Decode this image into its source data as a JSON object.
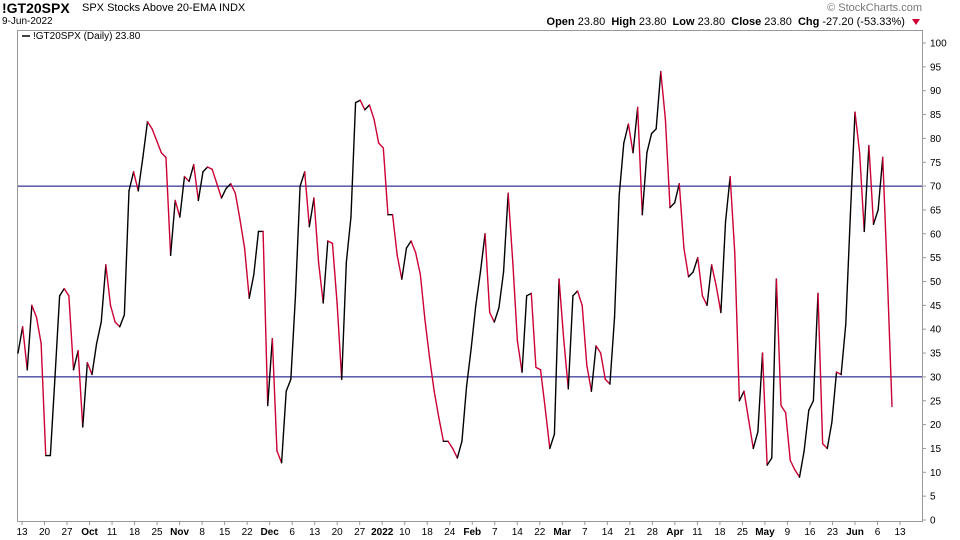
{
  "header": {
    "symbol": "!GT20SPX",
    "description": "SPX Stocks Above 20-EMA  INDX",
    "date": "9-Jun-2022",
    "watermark": "© StockCharts.com",
    "open_label": "Open",
    "open": "23.80",
    "high_label": "High",
    "high": "23.80",
    "low_label": "Low",
    "low": "23.80",
    "close_label": "Close",
    "close": "23.80",
    "chg_label": "Chg",
    "chg": "-27.20 (-53.33%)"
  },
  "legend": {
    "text": "!GT20SPX (Daily) 23.80"
  },
  "colors": {
    "up": "#000000",
    "down": "#cc0033",
    "refline": "#000080",
    "grid": "#cccccc"
  },
  "chart_data": {
    "type": "line",
    "title": "SPX Stocks Above 20-EMA",
    "series": [
      {
        "name": "!GT20SPX (Daily) 23.80",
        "values": [
          35,
          40.5,
          31.5,
          45,
          42.5,
          37,
          13.5,
          13.5,
          30,
          47,
          48.5,
          47,
          31.5,
          35.5,
          19.5,
          33,
          30.5,
          37,
          41.5,
          53.5,
          45,
          41.5,
          40.5,
          43,
          69,
          73,
          69,
          76,
          83.5,
          82,
          79.5,
          77,
          76,
          55.5,
          67,
          63.5,
          72,
          71,
          74.5,
          67,
          73,
          74,
          73.5,
          70.5,
          67.5,
          69.5,
          70.5,
          68.5,
          63,
          57,
          46.5,
          51.5,
          60.5,
          60.5,
          24,
          38,
          14.5,
          12,
          27,
          29.5,
          47,
          70,
          73,
          61.5,
          67.5,
          54,
          45.5,
          58.5,
          58,
          45.5,
          29.5,
          54,
          63.5,
          87.5,
          88,
          86,
          87,
          84,
          79,
          78,
          64,
          64,
          55.5,
          50.5,
          57,
          58.5,
          56,
          51.5,
          42,
          34,
          27,
          21.5,
          16.5,
          16.5,
          15,
          13,
          16.5,
          28,
          36,
          45,
          52,
          60,
          43.5,
          41.5,
          44.5,
          52,
          68.5,
          54,
          37.5,
          31,
          47,
          47.5,
          32,
          31.5,
          23.5,
          15,
          18,
          50.5,
          38,
          27.5,
          47,
          48,
          45,
          32.5,
          27,
          36.5,
          35,
          29.5,
          28.5,
          42.5,
          68,
          79,
          83,
          77,
          86.5,
          64,
          77,
          81,
          82,
          94,
          84,
          65.5,
          66.5,
          70.5,
          57,
          51,
          52,
          55,
          47,
          45,
          53.5,
          49,
          43.5,
          62.5,
          72,
          56,
          25,
          27,
          21,
          15,
          18.5,
          35,
          11.5,
          13,
          50.5,
          24,
          22.5,
          12.5,
          10.5,
          9,
          14.5,
          23,
          25,
          47.5,
          16,
          15,
          20.5,
          31,
          30.5,
          41,
          64,
          85.5,
          77,
          60.5,
          78.5,
          62,
          65,
          76,
          51,
          23.8
        ]
      }
    ],
    "xlabel": "",
    "ylabel": "",
    "ylim": [
      0,
      100
    ],
    "yticks": [
      0,
      5,
      10,
      15,
      20,
      25,
      30,
      35,
      40,
      45,
      50,
      55,
      60,
      65,
      70,
      75,
      80,
      85,
      90,
      95,
      100
    ],
    "xticks": [
      {
        "label": "13",
        "bold": false
      },
      {
        "label": "20",
        "bold": false
      },
      {
        "label": "27",
        "bold": false
      },
      {
        "label": "Oct",
        "bold": true
      },
      {
        "label": "11",
        "bold": false
      },
      {
        "label": "18",
        "bold": false
      },
      {
        "label": "25",
        "bold": false
      },
      {
        "label": "Nov",
        "bold": true
      },
      {
        "label": "8",
        "bold": false
      },
      {
        "label": "15",
        "bold": false
      },
      {
        "label": "22",
        "bold": false
      },
      {
        "label": "Dec",
        "bold": true
      },
      {
        "label": "6",
        "bold": false
      },
      {
        "label": "13",
        "bold": false
      },
      {
        "label": "20",
        "bold": false
      },
      {
        "label": "27",
        "bold": false
      },
      {
        "label": "2022",
        "bold": true
      },
      {
        "label": "10",
        "bold": false
      },
      {
        "label": "18",
        "bold": false
      },
      {
        "label": "24",
        "bold": false
      },
      {
        "label": "Feb",
        "bold": true
      },
      {
        "label": "7",
        "bold": false
      },
      {
        "label": "14",
        "bold": false
      },
      {
        "label": "22",
        "bold": false
      },
      {
        "label": "Mar",
        "bold": true
      },
      {
        "label": "7",
        "bold": false
      },
      {
        "label": "14",
        "bold": false
      },
      {
        "label": "21",
        "bold": false
      },
      {
        "label": "28",
        "bold": false
      },
      {
        "label": "Apr",
        "bold": true
      },
      {
        "label": "11",
        "bold": false
      },
      {
        "label": "18",
        "bold": false
      },
      {
        "label": "25",
        "bold": false
      },
      {
        "label": "May",
        "bold": true
      },
      {
        "label": "9",
        "bold": false
      },
      {
        "label": "16",
        "bold": false
      },
      {
        "label": "23",
        "bold": false
      },
      {
        "label": "Jun",
        "bold": true
      },
      {
        "label": "6",
        "bold": false
      },
      {
        "label": "13",
        "bold": false
      }
    ],
    "reference_lines": [
      70,
      30
    ],
    "grid": false,
    "legend_position": "top-left"
  }
}
